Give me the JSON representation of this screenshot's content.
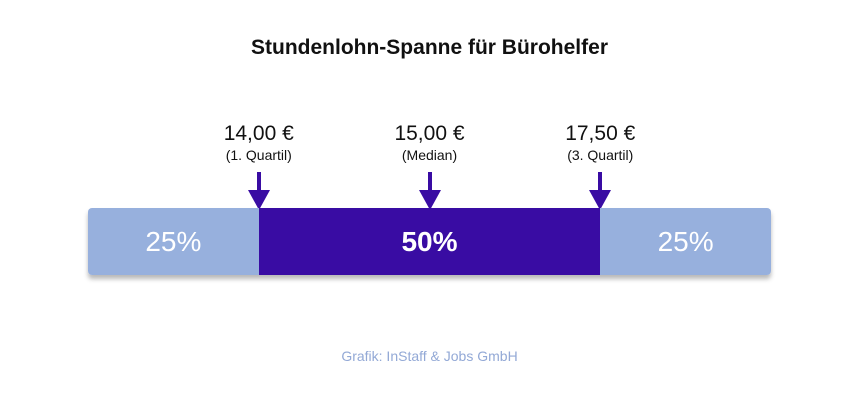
{
  "title": "Stundenlohn-Spanne für Bürohelfer",
  "source": "Grafik: InStaff & Jobs GmbH",
  "colors": {
    "outer": "#97b0dd",
    "middle": "#390ca3",
    "arrow": "#390ca3"
  },
  "chart_data": {
    "type": "bar",
    "orientation": "horizontal-stacked",
    "title": "Stundenlohn-Spanne für Bürohelfer",
    "segments": [
      {
        "label": "25%",
        "value": 25
      },
      {
        "label": "50%",
        "value": 50
      },
      {
        "label": "25%",
        "value": 25
      }
    ],
    "markers": [
      {
        "value": "14,00 €",
        "label": "(1. Quartil)",
        "percentile": 25
      },
      {
        "value": "15,00 €",
        "label": "(Median)",
        "percentile": 50
      },
      {
        "value": "17,50 €",
        "label": "(3. Quartil)",
        "percentile": 75
      }
    ]
  }
}
